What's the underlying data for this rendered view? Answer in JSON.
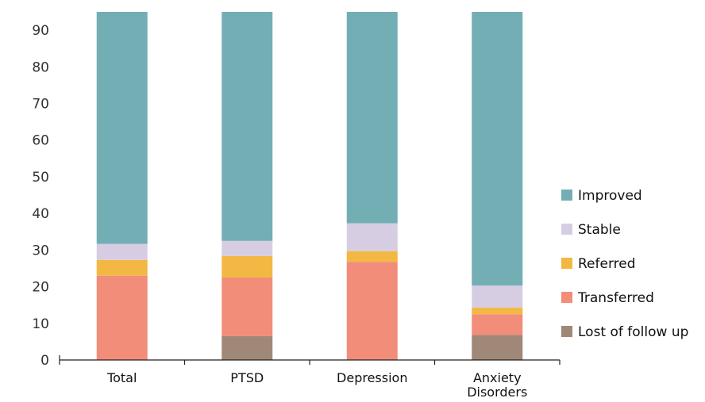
{
  "chart_data": {
    "type": "bar",
    "stacked": true,
    "categories": [
      [
        "Total"
      ],
      [
        "PTSD"
      ],
      [
        "Depression"
      ],
      [
        "Anxiety",
        "Disorders"
      ]
    ],
    "series": [
      {
        "name": "Lost of follow up",
        "color": "#a08878",
        "values": [
          0,
          6.5,
          0,
          6.8
        ]
      },
      {
        "name": "Transferred",
        "color": "#f28d7a",
        "values": [
          23,
          16,
          26.8,
          5.7
        ]
      },
      {
        "name": "Referred",
        "color": "#f3b843",
        "values": [
          4.3,
          5.9,
          2.9,
          1.8
        ]
      },
      {
        "name": "Stable",
        "color": "#d7cde3",
        "values": [
          4.4,
          4.1,
          7.6,
          6.0
        ]
      },
      {
        "name": "Improved",
        "color": "#73aeb5",
        "values": [
          63.3,
          62.5,
          57.7,
          74.7
        ]
      }
    ],
    "ylim": [
      0,
      95
    ],
    "yticks": [
      0,
      10,
      20,
      30,
      40,
      50,
      60,
      70,
      80,
      90
    ],
    "xlabel": "",
    "ylabel": "",
    "title": "",
    "grid": false,
    "legend_position": "right"
  }
}
